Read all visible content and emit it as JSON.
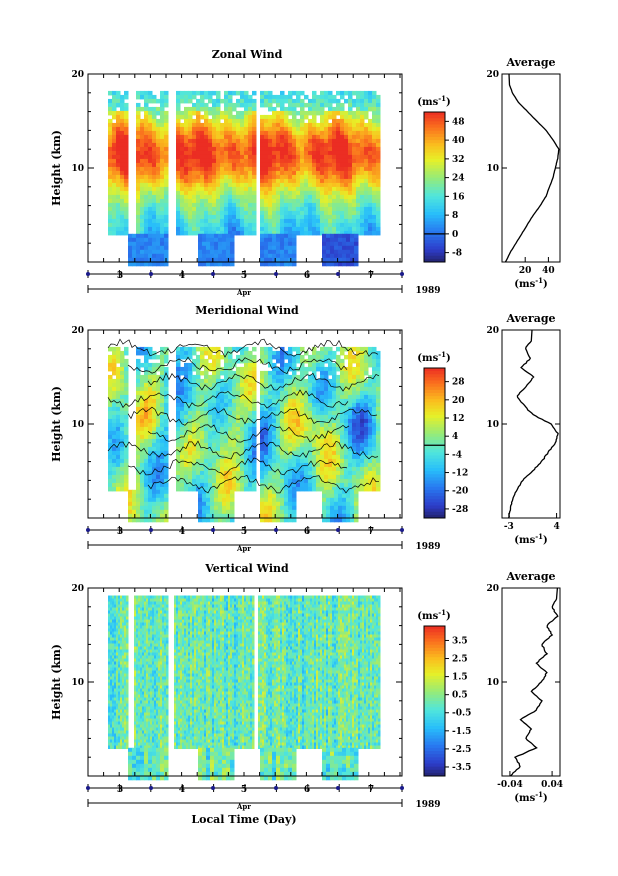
{
  "chart_data": [
    {
      "type": "heatmap",
      "title": "Zonal Wind",
      "ylabel": "Height (km)",
      "ylim": [
        0,
        20
      ],
      "y_ticks": [
        "10",
        "20"
      ],
      "x_day_labels": [
        "3",
        "4",
        "5",
        "6",
        "7"
      ],
      "x_month": "Apr",
      "year": "1989",
      "colorbar": {
        "unit": "(ms",
        "unit_exp": "-1",
        "unit_close": ")",
        "labels": [
          "48",
          "40",
          "32",
          "24",
          "16",
          "8",
          "0",
          "-8"
        ],
        "values": [
          48,
          40,
          32,
          24,
          16,
          8,
          0,
          -8
        ],
        "range": [
          -12,
          52
        ]
      },
      "field": {
        "height_start": 3,
        "height_end": 18.2,
        "jet_height": 11.5,
        "jet_max_speed": 50,
        "surface_speed": 12,
        "top_speed": 14
      },
      "average_panel": {
        "title": "Average",
        "x_ticks": [
          "20",
          "40"
        ],
        "x_tick_values": [
          20,
          40
        ],
        "xlim": [
          0,
          50
        ],
        "ylim": [
          0,
          20
        ],
        "y_ticks": [
          "10",
          "20"
        ],
        "unit": "(ms",
        "unit_exp": "-1",
        "unit_close": ")",
        "profile_heights": [
          0,
          1,
          2,
          3,
          4,
          5,
          6,
          7,
          8,
          9,
          10,
          11,
          12,
          13,
          14,
          15,
          16,
          17,
          18,
          19
        ],
        "profile_values": [
          3,
          7,
          12,
          17,
          22,
          27,
          33,
          38,
          41,
          44,
          46,
          48,
          49,
          44,
          38,
          30,
          22,
          14,
          9,
          6
        ]
      }
    },
    {
      "type": "heatmap",
      "title": "Meridional Wind",
      "ylabel": "Height (km)",
      "ylim": [
        0,
        20
      ],
      "y_ticks": [
        "10",
        "20"
      ],
      "x_day_labels": [
        "3",
        "4",
        "5",
        "6",
        "7"
      ],
      "x_month": "Apr",
      "year": "1989",
      "colorbar": {
        "unit": "(ms",
        "unit_exp": "-1",
        "unit_close": ")",
        "labels": [
          "28",
          "20",
          "12",
          "4",
          "-4",
          "-12",
          "-20",
          "-28"
        ],
        "values": [
          28,
          20,
          12,
          4,
          -4,
          -12,
          -20,
          -28
        ],
        "range": [
          -32,
          34
        ]
      },
      "field": {
        "height_start": 3,
        "height_end": 18.2
      },
      "average_panel": {
        "title": "Average",
        "x_ticks": [
          "-3",
          "4"
        ],
        "x_tick_values": [
          -3,
          4
        ],
        "xlim": [
          -4,
          4.5
        ],
        "ylim": [
          0,
          20
        ],
        "y_ticks": [
          "10",
          "20"
        ],
        "unit": "(ms",
        "unit_exp": "-1",
        "unit_close": ")",
        "profile_heights": [
          0,
          1,
          2,
          3,
          4,
          5,
          6,
          7,
          8,
          9,
          10,
          11,
          12,
          13,
          14,
          15,
          16,
          17,
          18,
          19
        ],
        "profile_values": [
          -3,
          -2.8,
          -2.5,
          -1.8,
          -1,
          0.5,
          1.8,
          2.8,
          3.8,
          4.2,
          3.2,
          0.5,
          -0.8,
          -1.8,
          -0.5,
          0.6,
          -1.2,
          0.2,
          -0.6,
          0.4
        ]
      }
    },
    {
      "type": "heatmap",
      "title": "Vertical Wind",
      "ylabel": "Height (km)",
      "xlabel": "Local Time (Day)",
      "ylim": [
        0,
        20
      ],
      "y_ticks": [
        "10",
        "20"
      ],
      "x_day_labels": [
        "3",
        "4",
        "5",
        "6",
        "7"
      ],
      "x_month": "Apr",
      "year": "1989",
      "colorbar": {
        "unit": "(ms",
        "unit_exp": "-1",
        "unit_close": ")",
        "labels": [
          "3.5",
          "2.5",
          "1.5",
          "0.5",
          "-0.5",
          "-1.5",
          "-2.5",
          "-3.5"
        ],
        "values": [
          3.5,
          2.5,
          1.5,
          0.5,
          -0.5,
          -1.5,
          -2.5,
          -3.5
        ],
        "range": [
          -4,
          4.3
        ]
      },
      "field": {
        "height_start": 3,
        "height_end": 19.2
      },
      "average_panel": {
        "title": "Average",
        "x_ticks": [
          "-0.04",
          "0.04"
        ],
        "x_tick_values": [
          -0.04,
          0.04
        ],
        "xlim": [
          -0.055,
          0.055
        ],
        "ylim": [
          0,
          20
        ],
        "y_ticks": [
          "10",
          "20"
        ],
        "unit": "(ms",
        "unit_exp": "-1",
        "unit_close": ")",
        "profile_heights": [
          0,
          1,
          2,
          3,
          4,
          5,
          6,
          7,
          8,
          9,
          10,
          11,
          12,
          13,
          14,
          15,
          16,
          17,
          18,
          19
        ],
        "profile_values": [
          -0.04,
          -0.02,
          -0.03,
          0.01,
          -0.01,
          0.0,
          -0.02,
          0.01,
          0.02,
          0.0,
          0.02,
          0.03,
          0.01,
          0.03,
          0.02,
          0.04,
          0.03,
          0.05,
          0.04,
          0.05
        ]
      }
    }
  ]
}
